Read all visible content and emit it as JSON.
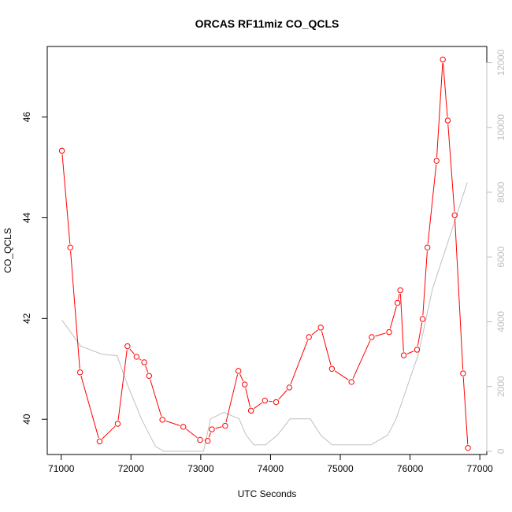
{
  "chart_data": {
    "type": "line",
    "title": "ORCAS RF11miz CO_QCLS",
    "xlabel": "UTC Seconds",
    "ylabel": "CO_QCLS",
    "xlim": [
      70800,
      77100
    ],
    "ylim": [
      39.3,
      47.4
    ],
    "y2lim": [
      -100,
      12500
    ],
    "x_ticks": [
      71000,
      72000,
      73000,
      74000,
      75000,
      76000,
      77000
    ],
    "y_ticks": [
      40,
      42,
      44,
      46
    ],
    "y2_ticks": [
      0,
      2000,
      4000,
      6000,
      8000,
      10000,
      12000
    ],
    "grid": false,
    "series": [
      {
        "axis": "left",
        "color": "#ff0000",
        "marker": "open-circle",
        "x": [
          71010,
          71130,
          71270,
          71550,
          71810,
          71950,
          72080,
          72190,
          72260,
          72450,
          72750,
          72990,
          73100,
          73160,
          73350,
          73540,
          73630,
          73720,
          73920,
          74080,
          74270,
          74550,
          74720,
          74880,
          75160,
          75450,
          75700,
          75820,
          75860,
          75910,
          76100,
          76180,
          76250,
          76380,
          76470,
          76540,
          76640,
          76760,
          76830
        ],
        "y": [
          45.33,
          43.41,
          40.93,
          39.56,
          39.91,
          41.45,
          41.24,
          41.13,
          40.86,
          39.99,
          39.85,
          39.59,
          39.57,
          39.8,
          39.87,
          40.96,
          40.69,
          40.17,
          40.37,
          40.34,
          40.63,
          41.63,
          41.82,
          41.0,
          40.74,
          41.63,
          41.73,
          42.31,
          42.56,
          41.27,
          41.38,
          41.99,
          43.41,
          45.13,
          47.14,
          45.93,
          44.05,
          40.91,
          39.43
        ]
      },
      {
        "axis": "right",
        "color": "#c0c0c0",
        "marker": "none",
        "x": [
          71010,
          71280,
          71580,
          71800,
          71960,
          72150,
          72350,
          72470,
          72760,
          72900,
          73040,
          73140,
          73330,
          73550,
          73650,
          73760,
          73930,
          74100,
          74280,
          74400,
          74570,
          74720,
          74880,
          75060,
          75440,
          75680,
          75800,
          75960,
          76120,
          76320,
          76580,
          76820
        ],
        "y": [
          4050,
          3250,
          3000,
          2950,
          2000,
          1000,
          150,
          0,
          0,
          0,
          0,
          1000,
          1200,
          1000,
          500,
          200,
          200,
          500,
          1000,
          1000,
          1000,
          500,
          200,
          200,
          200,
          500,
          1000,
          2000,
          3000,
          5000,
          6700,
          8300
        ]
      }
    ]
  }
}
